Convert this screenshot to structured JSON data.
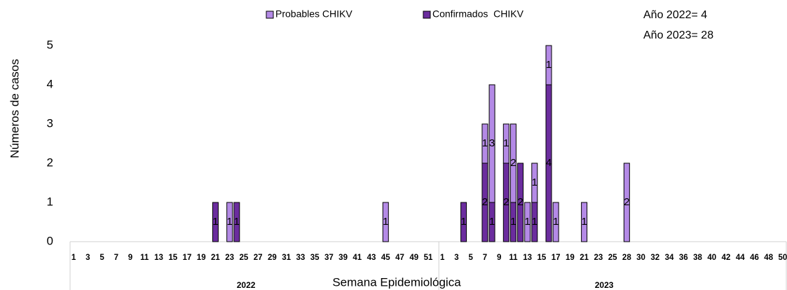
{
  "chart_data": {
    "type": "stacked_bar",
    "x_label": "Semana Epidemiológica",
    "y_label": "Números de casos",
    "annotations": [
      "Año 2022= 4",
      "Año 2023= 28"
    ],
    "group_labels": [
      "2022",
      "2023"
    ],
    "categories": [
      1,
      null,
      3,
      null,
      5,
      null,
      7,
      null,
      9,
      null,
      11,
      null,
      13,
      null,
      15,
      null,
      17,
      null,
      19,
      null,
      21,
      null,
      23,
      null,
      25,
      null,
      27,
      null,
      29,
      null,
      31,
      null,
      33,
      null,
      35,
      null,
      37,
      null,
      39,
      null,
      41,
      null,
      43,
      null,
      45,
      null,
      47,
      null,
      49,
      null,
      51,
      null,
      1,
      null,
      3,
      null,
      5,
      null,
      7,
      null,
      9,
      null,
      11,
      null,
      13,
      null,
      15,
      null,
      17,
      null,
      19,
      null,
      21,
      null,
      23,
      null,
      25,
      null,
      28,
      null,
      30,
      null,
      32,
      null,
      34,
      null,
      36,
      null,
      38,
      null,
      40,
      null,
      42,
      null,
      44,
      null,
      46,
      null,
      48,
      null,
      50
    ],
    "series": [
      {
        "name": "Confirmados  CHIKV",
        "color": "#6b2d9e",
        "values": [
          0,
          0,
          0,
          0,
          0,
          0,
          0,
          0,
          0,
          0,
          0,
          0,
          0,
          0,
          0,
          0,
          0,
          0,
          0,
          0,
          1,
          0,
          0,
          1,
          0,
          0,
          0,
          0,
          0,
          0,
          0,
          0,
          0,
          0,
          0,
          0,
          0,
          0,
          0,
          0,
          0,
          0,
          0,
          0,
          0,
          0,
          0,
          0,
          0,
          0,
          0,
          0,
          0,
          0,
          0,
          1,
          0,
          0,
          2,
          1,
          0,
          2,
          1,
          2,
          0,
          1,
          0,
          4,
          0,
          0,
          0,
          0,
          0,
          0,
          0,
          0,
          0,
          0,
          0,
          0,
          0,
          0,
          0,
          0,
          0,
          0,
          0,
          0,
          0,
          0,
          0,
          0,
          0,
          0,
          0,
          0,
          0,
          0,
          0,
          0,
          0
        ]
      },
      {
        "name": "Probables CHIKV",
        "color": "#b48ae6",
        "values": [
          0,
          0,
          0,
          0,
          0,
          0,
          0,
          0,
          0,
          0,
          0,
          0,
          0,
          0,
          0,
          0,
          0,
          0,
          0,
          0,
          0,
          0,
          1,
          0,
          0,
          0,
          0,
          0,
          0,
          0,
          0,
          0,
          0,
          0,
          0,
          0,
          0,
          0,
          0,
          0,
          0,
          0,
          0,
          0,
          1,
          0,
          0,
          0,
          0,
          0,
          0,
          0,
          0,
          0,
          0,
          0,
          0,
          0,
          1,
          3,
          0,
          1,
          2,
          0,
          1,
          1,
          0,
          1,
          1,
          0,
          0,
          0,
          1,
          0,
          0,
          0,
          0,
          0,
          2,
          0,
          0,
          0,
          0,
          0,
          0,
          0,
          0,
          0,
          0,
          0,
          0,
          0,
          0,
          0,
          0,
          0,
          0,
          0,
          0,
          0,
          0
        ]
      }
    ],
    "ylim": [
      0,
      5
    ],
    "yticks": [
      0,
      1,
      2,
      3,
      4,
      5
    ],
    "grid": false
  }
}
